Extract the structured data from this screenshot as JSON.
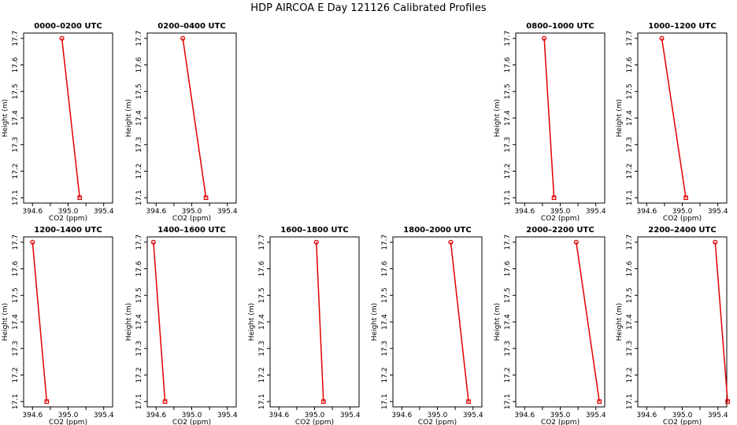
{
  "title": "HDP AIRCOA E  Day 121126  Calibrated Profiles",
  "colors": {
    "series": "#e00000",
    "axis": "#000000",
    "background": "#ffffff"
  },
  "chart_data": [
    {
      "type": "line",
      "title": "0000–0200 UTC",
      "xlabel": "CO2 (ppm)",
      "ylabel": "Height (m)",
      "xlim": [
        394.5,
        395.5
      ],
      "ylim": [
        17.08,
        17.72
      ],
      "xticks": [
        "394.6",
        "395.0",
        "395.4"
      ],
      "yticks": [
        "17.1",
        "17.2",
        "17.3",
        "17.4",
        "17.5",
        "17.6",
        "17.7"
      ],
      "points": [
        {
          "x": 395.13,
          "y": 17.1
        },
        {
          "x": 394.93,
          "y": 17.7
        }
      ]
    },
    {
      "type": "line",
      "title": "0200–0400 UTC",
      "xlabel": "CO2 (ppm)",
      "ylabel": "Height (m)",
      "xlim": [
        394.5,
        395.5
      ],
      "ylim": [
        17.08,
        17.72
      ],
      "xticks": [
        "394.6",
        "395.0",
        "395.4"
      ],
      "yticks": [
        "17.1",
        "17.2",
        "17.3",
        "17.4",
        "17.5",
        "17.6",
        "17.7"
      ],
      "points": [
        {
          "x": 395.16,
          "y": 17.1
        },
        {
          "x": 394.9,
          "y": 17.7
        }
      ]
    },
    {
      "type": "line",
      "title": "0800–1000 UTC",
      "xlabel": "CO2 (ppm)",
      "ylabel": "Height (m)",
      "xlim": [
        394.5,
        395.5
      ],
      "ylim": [
        17.08,
        17.72
      ],
      "xticks": [
        "394.6",
        "395.0",
        "395.4"
      ],
      "yticks": [
        "17.1",
        "17.2",
        "17.3",
        "17.4",
        "17.5",
        "17.6",
        "17.7"
      ],
      "points": [
        {
          "x": 394.93,
          "y": 17.1
        },
        {
          "x": 394.82,
          "y": 17.7
        }
      ]
    },
    {
      "type": "line",
      "title": "1000–1200 UTC",
      "xlabel": "CO2 (ppm)",
      "ylabel": "Height (m)",
      "xlim": [
        394.5,
        395.5
      ],
      "ylim": [
        17.08,
        17.72
      ],
      "xticks": [
        "394.6",
        "395.0",
        "395.4"
      ],
      "yticks": [
        "17.1",
        "17.2",
        "17.3",
        "17.4",
        "17.5",
        "17.6",
        "17.7"
      ],
      "points": [
        {
          "x": 395.04,
          "y": 17.1
        },
        {
          "x": 394.77,
          "y": 17.7
        }
      ]
    },
    {
      "type": "line",
      "title": "1200–1400 UTC",
      "xlabel": "CO2 (ppm)",
      "ylabel": "Height (m)",
      "xlim": [
        394.5,
        395.5
      ],
      "ylim": [
        17.08,
        17.72
      ],
      "xticks": [
        "394.6",
        "395.0",
        "395.4"
      ],
      "yticks": [
        "17.1",
        "17.2",
        "17.3",
        "17.4",
        "17.5",
        "17.6",
        "17.7"
      ],
      "points": [
        {
          "x": 394.76,
          "y": 17.1
        },
        {
          "x": 394.6,
          "y": 17.7
        }
      ]
    },
    {
      "type": "line",
      "title": "1400–1600 UTC",
      "xlabel": "CO2 (ppm)",
      "ylabel": "Height (m)",
      "xlim": [
        394.5,
        395.5
      ],
      "ylim": [
        17.08,
        17.72
      ],
      "xticks": [
        "394.6",
        "395.0",
        "395.4"
      ],
      "yticks": [
        "17.1",
        "17.2",
        "17.3",
        "17.4",
        "17.5",
        "17.6",
        "17.7"
      ],
      "points": [
        {
          "x": 394.7,
          "y": 17.1
        },
        {
          "x": 394.57,
          "y": 17.7
        }
      ]
    },
    {
      "type": "line",
      "title": "1600–1800 UTC",
      "xlabel": "CO2 (ppm)",
      "ylabel": "Height (m)",
      "xlim": [
        394.5,
        395.5
      ],
      "ylim": [
        17.08,
        17.72
      ],
      "xticks": [
        "394.6",
        "395.0",
        "395.4"
      ],
      "yticks": [
        "17.1",
        "17.2",
        "17.3",
        "17.4",
        "17.5",
        "17.6",
        "17.7"
      ],
      "points": [
        {
          "x": 395.1,
          "y": 17.1
        },
        {
          "x": 395.02,
          "y": 17.7
        }
      ]
    },
    {
      "type": "line",
      "title": "1800–2000 UTC",
      "xlabel": "CO2 (ppm)",
      "ylabel": "Height (m)",
      "xlim": [
        394.5,
        395.5
      ],
      "ylim": [
        17.08,
        17.72
      ],
      "xticks": [
        "394.6",
        "395.0",
        "395.4"
      ],
      "yticks": [
        "17.1",
        "17.2",
        "17.3",
        "17.4",
        "17.5",
        "17.6",
        "17.7"
      ],
      "points": [
        {
          "x": 395.35,
          "y": 17.1
        },
        {
          "x": 395.15,
          "y": 17.7
        }
      ]
    },
    {
      "type": "line",
      "title": "2000–2200 UTC",
      "xlabel": "CO2 (ppm)",
      "ylabel": "Height (m)",
      "xlim": [
        394.5,
        395.5
      ],
      "ylim": [
        17.08,
        17.72
      ],
      "xticks": [
        "394.6",
        "395.0",
        "395.4"
      ],
      "yticks": [
        "17.1",
        "17.2",
        "17.3",
        "17.4",
        "17.5",
        "17.6",
        "17.7"
      ],
      "points": [
        {
          "x": 395.44,
          "y": 17.1
        },
        {
          "x": 395.18,
          "y": 17.7
        }
      ]
    },
    {
      "type": "line",
      "title": "2200–2400 UTC",
      "xlabel": "CO2 (ppm)",
      "ylabel": "Height (m)",
      "xlim": [
        394.5,
        395.5
      ],
      "ylim": [
        17.08,
        17.72
      ],
      "xticks": [
        "394.6",
        "395.0",
        "395.4"
      ],
      "yticks": [
        "17.1",
        "17.2",
        "17.3",
        "17.4",
        "17.5",
        "17.6",
        "17.7"
      ],
      "points": [
        {
          "x": 395.51,
          "y": 17.1
        },
        {
          "x": 395.37,
          "y": 17.7
        }
      ]
    }
  ]
}
